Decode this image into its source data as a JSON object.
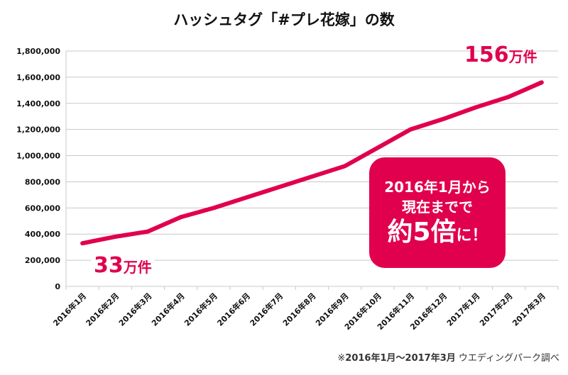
{
  "chart_data": {
    "type": "line",
    "title": "ハッシュタグ「#プレ花嫁」の数",
    "categories": [
      "2016年1月",
      "2016年2月",
      "2016年3月",
      "2016年4月",
      "2016年5月",
      "2016年6月",
      "2016年7月",
      "2016年8月",
      "2016年9月",
      "2016年10月",
      "2016年11月",
      "2016年12月",
      "2017年1月",
      "2017年2月",
      "2017年3月"
    ],
    "series": [
      {
        "name": "#プレ花嫁",
        "color": "#e0004d",
        "values": [
          330000,
          380000,
          420000,
          530000,
          600000,
          680000,
          760000,
          840000,
          920000,
          1060000,
          1200000,
          1280000,
          1370000,
          1450000,
          1560000
        ]
      }
    ],
    "ylim": [
      0,
      1800000
    ],
    "yticks": [
      0,
      200000,
      400000,
      600000,
      800000,
      1000000,
      1200000,
      1400000,
      1600000,
      1800000
    ],
    "ytick_labels": [
      "0",
      "200,000",
      "400,000",
      "600,000",
      "800,000",
      "1,000,000",
      "1,200,000",
      "1,400,000",
      "1,600,000",
      "1,800,000"
    ],
    "grid": true,
    "annotations": {
      "start_num": "33",
      "start_unit": "万件",
      "end_num": "156",
      "end_unit": "万件",
      "callout_line1": "2016年1月から",
      "callout_line2": "現在までで",
      "callout_pre": "約5倍",
      "callout_post": "に！"
    },
    "note_prefix": "※",
    "note_range": "2016年1月～2017年3月",
    "note_source": " ウエディングパーク調べ"
  }
}
